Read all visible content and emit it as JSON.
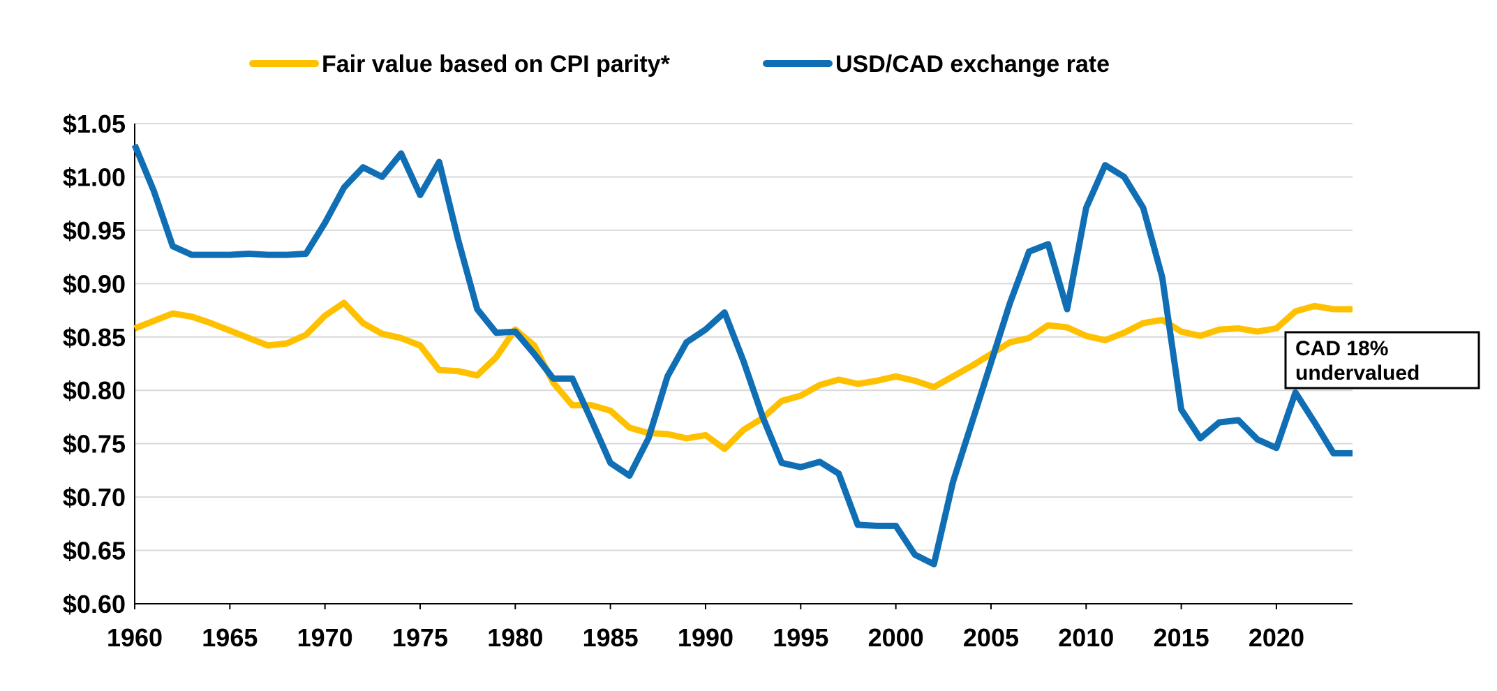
{
  "chart_data": {
    "type": "line",
    "title": "",
    "xlabel": "",
    "ylabel": "",
    "xlim": [
      1960,
      2024
    ],
    "ylim": [
      0.6,
      1.05
    ],
    "x_ticks": [
      1960,
      1965,
      1970,
      1975,
      1980,
      1985,
      1990,
      1995,
      2000,
      2005,
      2010,
      2015,
      2020
    ],
    "y_ticks": [
      0.6,
      0.65,
      0.7,
      0.75,
      0.8,
      0.85,
      0.9,
      0.95,
      1.0,
      1.05
    ],
    "y_tick_labels": [
      "$0.60",
      "$0.65",
      "$0.70",
      "$0.75",
      "$0.80",
      "$0.85",
      "$0.90",
      "$0.95",
      "$1.00",
      "$1.05"
    ],
    "grid": "horizontal",
    "legend_position": "top",
    "x": [
      1960,
      1961,
      1962,
      1963,
      1964,
      1965,
      1966,
      1967,
      1968,
      1969,
      1970,
      1971,
      1972,
      1973,
      1974,
      1975,
      1976,
      1977,
      1978,
      1979,
      1980,
      1981,
      1982,
      1983,
      1984,
      1985,
      1986,
      1987,
      1988,
      1989,
      1990,
      1991,
      1992,
      1993,
      1994,
      1995,
      1996,
      1997,
      1998,
      1999,
      2000,
      2001,
      2002,
      2003,
      2004,
      2005,
      2006,
      2007,
      2008,
      2009,
      2010,
      2011,
      2012,
      2013,
      2014,
      2015,
      2016,
      2017,
      2018,
      2019,
      2020,
      2021,
      2022,
      2023,
      2024
    ],
    "series": [
      {
        "name": "Fair value based on CPI parity*",
        "color": "#FFC000",
        "values": [
          0.858,
          0.865,
          0.872,
          0.869,
          0.863,
          0.856,
          0.849,
          0.842,
          0.844,
          0.852,
          0.87,
          0.882,
          0.863,
          0.853,
          0.849,
          0.842,
          0.819,
          0.818,
          0.814,
          0.831,
          0.857,
          0.842,
          0.807,
          0.786,
          0.786,
          0.781,
          0.765,
          0.76,
          0.759,
          0.755,
          0.758,
          0.745,
          0.763,
          0.774,
          0.79,
          0.795,
          0.805,
          0.81,
          0.806,
          0.809,
          0.813,
          0.809,
          0.803,
          0.813,
          0.823,
          0.834,
          0.845,
          0.849,
          0.861,
          0.859,
          0.851,
          0.847,
          0.854,
          0.863,
          0.866,
          0.855,
          0.851,
          0.857,
          0.858,
          0.855,
          0.858,
          0.874,
          0.879,
          0.876,
          0.876
        ]
      },
      {
        "name": "USD/CAD exchange rate",
        "color": "#0F6EB4",
        "values": [
          1.03,
          0.987,
          0.935,
          0.927,
          0.927,
          0.927,
          0.928,
          0.927,
          0.927,
          0.928,
          0.957,
          0.99,
          1.009,
          1.0,
          1.022,
          0.983,
          1.014,
          0.941,
          0.876,
          0.854,
          0.855,
          0.834,
          0.811,
          0.811,
          0.772,
          0.732,
          0.72,
          0.755,
          0.813,
          0.845,
          0.857,
          0.873,
          0.827,
          0.775,
          0.732,
          0.728,
          0.733,
          0.722,
          0.674,
          0.673,
          0.673,
          0.646,
          0.637,
          0.714,
          0.77,
          0.826,
          0.882,
          0.93,
          0.937,
          0.876,
          0.971,
          1.011,
          1.0,
          0.971,
          0.906,
          0.782,
          0.755,
          0.77,
          0.772,
          0.754,
          0.746,
          0.798,
          0.77,
          0.741,
          0.741
        ]
      }
    ],
    "annotation": {
      "line1": "CAD 18%",
      "line2": "undervalued"
    }
  }
}
